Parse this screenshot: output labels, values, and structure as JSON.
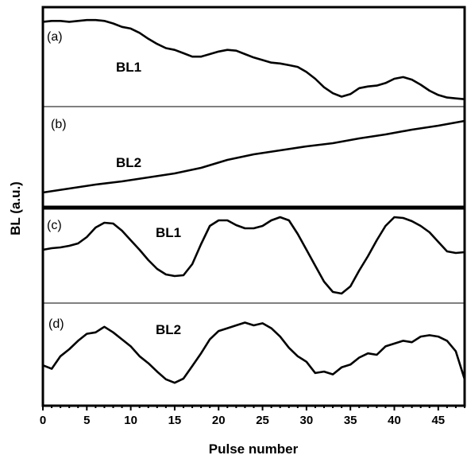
{
  "chart_data": {
    "type": "line",
    "xlabel": "Pulse number",
    "ylabel": "BL (a.u.)",
    "xlim": [
      0,
      48
    ],
    "xticks": [
      0,
      5,
      10,
      15,
      20,
      25,
      30,
      35,
      40,
      45
    ],
    "panels": [
      {
        "label": "(a)",
        "series_name": "BL1",
        "x": [
          0,
          1,
          2,
          3,
          4,
          5,
          6,
          7,
          8,
          9,
          10,
          11,
          12,
          13,
          14,
          15,
          16,
          17,
          18,
          19,
          20,
          21,
          22,
          23,
          24,
          25,
          26,
          27,
          28,
          29,
          30,
          31,
          32,
          33,
          34,
          35,
          36,
          37,
          38,
          39,
          40,
          41,
          42,
          43,
          44,
          45,
          46,
          47,
          48
        ],
        "values": [
          0.95,
          0.96,
          0.96,
          0.95,
          0.96,
          0.97,
          0.97,
          0.96,
          0.93,
          0.89,
          0.87,
          0.82,
          0.75,
          0.69,
          0.64,
          0.62,
          0.58,
          0.54,
          0.54,
          0.57,
          0.6,
          0.62,
          0.61,
          0.57,
          0.53,
          0.5,
          0.47,
          0.46,
          0.44,
          0.42,
          0.36,
          0.28,
          0.18,
          0.11,
          0.07,
          0.1,
          0.17,
          0.19,
          0.2,
          0.23,
          0.28,
          0.3,
          0.27,
          0.21,
          0.14,
          0.09,
          0.06,
          0.05,
          0.04
        ]
      },
      {
        "label": "(b)",
        "series_name": "BL2",
        "x": [
          0,
          3,
          6,
          9,
          12,
          15,
          18,
          21,
          24,
          27,
          30,
          33,
          36,
          39,
          42,
          45,
          48
        ],
        "values": [
          0.04,
          0.09,
          0.14,
          0.18,
          0.23,
          0.28,
          0.35,
          0.45,
          0.52,
          0.57,
          0.62,
          0.66,
          0.72,
          0.77,
          0.83,
          0.88,
          0.94
        ]
      },
      {
        "label": "(c)",
        "series_name": "BL1",
        "x": [
          0,
          1,
          2,
          3,
          4,
          5,
          6,
          7,
          8,
          9,
          10,
          11,
          12,
          13,
          14,
          15,
          16,
          17,
          18,
          19,
          20,
          21,
          22,
          23,
          24,
          25,
          26,
          27,
          28,
          29,
          30,
          31,
          32,
          33,
          34,
          35,
          36,
          37,
          38,
          39,
          40,
          41,
          42,
          43,
          44,
          45,
          46,
          47,
          48
        ],
        "values": [
          0.58,
          0.6,
          0.61,
          0.63,
          0.66,
          0.74,
          0.86,
          0.92,
          0.91,
          0.82,
          0.7,
          0.58,
          0.45,
          0.34,
          0.27,
          0.25,
          0.26,
          0.4,
          0.65,
          0.88,
          0.95,
          0.95,
          0.89,
          0.85,
          0.85,
          0.88,
          0.95,
          0.99,
          0.95,
          0.78,
          0.58,
          0.38,
          0.18,
          0.05,
          0.03,
          0.12,
          0.32,
          0.5,
          0.7,
          0.88,
          0.99,
          0.98,
          0.94,
          0.88,
          0.8,
          0.68,
          0.56,
          0.54,
          0.55
        ]
      },
      {
        "label": "(d)",
        "series_name": "BL2",
        "x": [
          0,
          1,
          2,
          3,
          4,
          5,
          6,
          7,
          8,
          9,
          10,
          11,
          12,
          13,
          14,
          15,
          16,
          17,
          18,
          19,
          20,
          21,
          22,
          23,
          24,
          25,
          26,
          27,
          28,
          29,
          30,
          31,
          32,
          33,
          34,
          35,
          36,
          37,
          38,
          39,
          40,
          41,
          42,
          43,
          44,
          45,
          46,
          47,
          48
        ],
        "values": [
          0.35,
          0.3,
          0.48,
          0.58,
          0.7,
          0.8,
          0.82,
          0.9,
          0.82,
          0.72,
          0.62,
          0.48,
          0.38,
          0.26,
          0.15,
          0.1,
          0.16,
          0.34,
          0.52,
          0.72,
          0.84,
          0.88,
          0.92,
          0.96,
          0.92,
          0.95,
          0.88,
          0.76,
          0.6,
          0.48,
          0.4,
          0.24,
          0.26,
          0.22,
          0.32,
          0.36,
          0.46,
          0.52,
          0.5,
          0.62,
          0.66,
          0.7,
          0.68,
          0.76,
          0.78,
          0.76,
          0.7,
          0.55,
          0.15
        ]
      }
    ],
    "grid": false,
    "legend": "none"
  }
}
